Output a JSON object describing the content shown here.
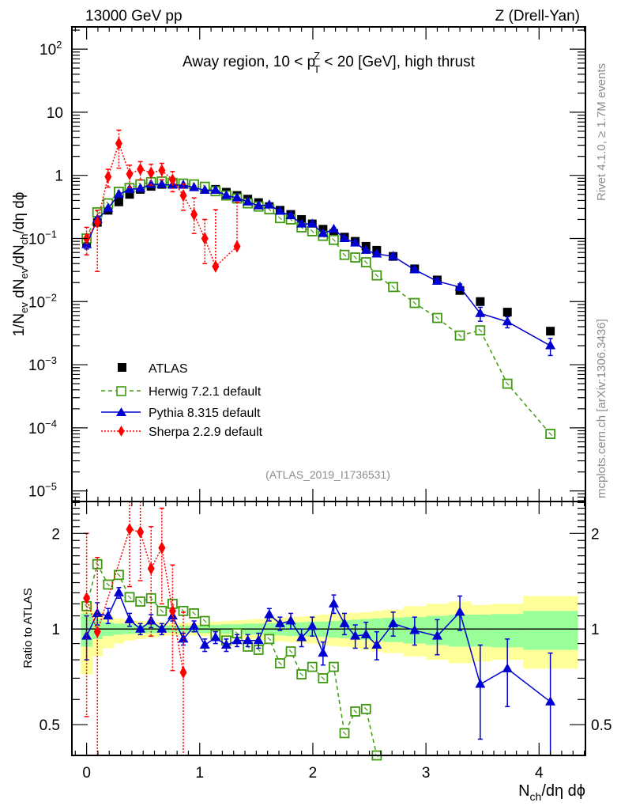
{
  "header": {
    "left": "13000 GeV pp",
    "right": "Z (Drell-Yan)"
  },
  "side_labels": {
    "rivet": "Rivet 4.1.0, ≥ 1.7M events",
    "mcplots": "mcplots.cern.ch [arXiv:1306.3436]"
  },
  "chart_data": [
    {
      "type": "scatter",
      "panel": "main",
      "title": "Away region, 10 < p_T^Z < 20 [GeV], high thrust",
      "title_parts": {
        "pre": "Away region, 10 < p",
        "sub": "T",
        "sup": "Z",
        "post": " < 20 [GeV], high thrust"
      },
      "xlabel": "N_ch/dη dφ",
      "ylabel": "1/N_ev dN_ev/dN_ch/dη dφ",
      "yscale": "log",
      "xlim": [
        -0.13,
        4.41
      ],
      "ylim": [
        6.8e-06,
        225
      ],
      "xticks": [
        "0",
        "1",
        "2",
        "3",
        "4"
      ],
      "yticks": [
        "10^2",
        "10",
        "1",
        "10^-1",
        "10^-2",
        "10^-3",
        "10^-4",
        "10^-5"
      ],
      "analysis_id": "(ATLAS_2019_I1736531)",
      "legend_position": "bottom-left",
      "series": [
        {
          "name": "ATLAS",
          "style": "square-filled",
          "color": "#000000",
          "x": [
            0.0,
            0.095,
            0.19,
            0.285,
            0.38,
            0.475,
            0.57,
            0.665,
            0.76,
            0.855,
            0.95,
            1.045,
            1.14,
            1.235,
            1.33,
            1.425,
            1.52,
            1.615,
            1.71,
            1.805,
            1.9,
            1.995,
            2.09,
            2.185,
            2.28,
            2.375,
            2.47,
            2.565,
            2.71,
            2.9,
            3.1,
            3.3,
            3.48,
            3.72,
            4.1
          ],
          "y": [
            0.085,
            0.18,
            0.28,
            0.38,
            0.5,
            0.6,
            0.67,
            0.72,
            0.73,
            0.72,
            0.68,
            0.64,
            0.6,
            0.54,
            0.48,
            0.42,
            0.37,
            0.32,
            0.28,
            0.24,
            0.2,
            0.17,
            0.14,
            0.12,
            0.105,
            0.09,
            0.075,
            0.065,
            0.052,
            0.033,
            0.022,
            0.015,
            0.01,
            0.0068,
            0.0034
          ]
        },
        {
          "name": "Herwig 7.2.1 default",
          "style": "square-open-dashed",
          "color": "#3f9a10",
          "x": [
            0.0,
            0.095,
            0.19,
            0.285,
            0.38,
            0.475,
            0.57,
            0.665,
            0.76,
            0.855,
            0.95,
            1.045,
            1.14,
            1.235,
            1.33,
            1.425,
            1.52,
            1.615,
            1.71,
            1.805,
            1.9,
            1.995,
            2.09,
            2.185,
            2.28,
            2.375,
            2.47,
            2.565,
            2.71,
            2.9,
            3.1,
            3.3,
            3.48,
            3.72,
            4.1
          ],
          "y": [
            0.1,
            0.26,
            0.36,
            0.55,
            0.63,
            0.72,
            0.78,
            0.8,
            0.76,
            0.74,
            0.72,
            0.66,
            0.56,
            0.48,
            0.43,
            0.36,
            0.32,
            0.29,
            0.21,
            0.2,
            0.15,
            0.13,
            0.11,
            0.095,
            0.055,
            0.05,
            0.042,
            0.026,
            0.017,
            0.0095,
            0.0055,
            0.0029,
            0.0035,
            0.0005,
            8e-05
          ]
        },
        {
          "name": "Pythia 8.315 default",
          "style": "triangle-solid",
          "color": "#0000d0",
          "x": [
            0.0,
            0.095,
            0.19,
            0.285,
            0.38,
            0.475,
            0.57,
            0.665,
            0.76,
            0.855,
            0.95,
            1.045,
            1.14,
            1.235,
            1.33,
            1.425,
            1.52,
            1.615,
            1.71,
            1.805,
            1.9,
            1.995,
            2.09,
            2.185,
            2.28,
            2.375,
            2.47,
            2.565,
            2.71,
            2.9,
            3.1,
            3.3,
            3.48,
            3.72,
            4.1
          ],
          "y": [
            0.08,
            0.2,
            0.3,
            0.5,
            0.6,
            0.62,
            0.72,
            0.72,
            0.7,
            0.7,
            0.64,
            0.58,
            0.58,
            0.48,
            0.44,
            0.38,
            0.33,
            0.34,
            0.27,
            0.23,
            0.17,
            0.17,
            0.12,
            0.14,
            0.1,
            0.085,
            0.065,
            0.057,
            0.052,
            0.032,
            0.021,
            0.017,
            0.0065,
            0.0048,
            0.002
          ],
          "yerr_rel": [
            0.15,
            0.08,
            0.05,
            0.04,
            0.03,
            0.03,
            0.03,
            0.03,
            0.03,
            0.03,
            0.03,
            0.03,
            0.03,
            0.03,
            0.03,
            0.03,
            0.03,
            0.04,
            0.04,
            0.04,
            0.04,
            0.05,
            0.05,
            0.05,
            0.05,
            0.06,
            0.06,
            0.07,
            0.08,
            0.08,
            0.1,
            0.12,
            0.25,
            0.2,
            0.3
          ]
        },
        {
          "name": "Sherpa 2.2.9 default",
          "style": "diamond-dotted",
          "color": "#ff0000",
          "x": [
            0.0,
            0.095,
            0.19,
            0.285,
            0.38,
            0.475,
            0.57,
            0.665,
            0.76,
            0.855,
            0.95,
            1.045,
            1.14,
            1.33
          ],
          "y": [
            0.1,
            0.18,
            0.95,
            3.2,
            1.05,
            1.25,
            1.1,
            1.2,
            0.85,
            0.48,
            0.24,
            0.1,
            0.036,
            0.075
          ],
          "yerr_lo": [
            0.045,
            0.15,
            0.3,
            1.9,
            0.4,
            0.4,
            0.4,
            0.35,
            0.3,
            0.2,
            0.12,
            0.06,
            1e-07,
            1e-07
          ],
          "yerr_hi": [
            0.05,
            0.1,
            0.3,
            2.0,
            0.4,
            0.4,
            0.4,
            0.35,
            0.3,
            0.25,
            0.2,
            0.1,
            0.25,
            0.3
          ]
        }
      ]
    },
    {
      "type": "scatter",
      "panel": "ratio",
      "ylabel": "Ratio to ATLAS",
      "xlabel": "N_ch/dη dφ",
      "yscale": "log",
      "xlim": [
        -0.13,
        4.41
      ],
      "ylim": [
        0.4,
        2.52
      ],
      "yticks": [
        "2",
        "1",
        "0.5"
      ],
      "xticks": [
        "0",
        "1",
        "2",
        "3",
        "4"
      ],
      "reference_line": 1,
      "bands": {
        "edges": [
          -0.05,
          0.05,
          0.14,
          0.24,
          0.33,
          0.43,
          0.52,
          0.62,
          0.71,
          0.81,
          0.9,
          1.0,
          1.09,
          1.19,
          1.28,
          1.38,
          1.47,
          1.57,
          1.66,
          1.76,
          1.85,
          1.95,
          2.04,
          2.14,
          2.23,
          2.33,
          2.42,
          2.52,
          2.62,
          2.8,
          3.0,
          3.2,
          3.4,
          3.58,
          3.86,
          4.34
        ],
        "stat_lo": [
          0.88,
          0.93,
          0.95,
          0.96,
          0.965,
          0.97,
          0.97,
          0.975,
          0.975,
          0.975,
          0.975,
          0.97,
          0.97,
          0.965,
          0.965,
          0.96,
          0.96,
          0.955,
          0.955,
          0.95,
          0.95,
          0.945,
          0.945,
          0.94,
          0.935,
          0.93,
          0.925,
          0.92,
          0.91,
          0.9,
          0.89,
          0.88,
          0.88,
          0.875,
          0.86
        ],
        "stat_hi": [
          1.12,
          1.07,
          1.05,
          1.04,
          1.035,
          1.03,
          1.03,
          1.025,
          1.025,
          1.025,
          1.025,
          1.03,
          1.03,
          1.035,
          1.035,
          1.04,
          1.04,
          1.045,
          1.045,
          1.05,
          1.05,
          1.055,
          1.055,
          1.06,
          1.065,
          1.07,
          1.075,
          1.08,
          1.085,
          1.09,
          1.1,
          1.11,
          1.11,
          1.115,
          1.14
        ],
        "total_lo": [
          0.72,
          0.82,
          0.87,
          0.9,
          0.92,
          0.93,
          0.94,
          0.95,
          0.955,
          0.955,
          0.955,
          0.95,
          0.945,
          0.94,
          0.935,
          0.93,
          0.925,
          0.92,
          0.915,
          0.91,
          0.905,
          0.9,
          0.89,
          0.885,
          0.88,
          0.87,
          0.86,
          0.85,
          0.84,
          0.82,
          0.8,
          0.78,
          0.79,
          0.8,
          0.75
        ],
        "total_hi": [
          1.22,
          1.14,
          1.1,
          1.08,
          1.065,
          1.06,
          1.055,
          1.05,
          1.045,
          1.045,
          1.045,
          1.05,
          1.055,
          1.06,
          1.065,
          1.07,
          1.075,
          1.08,
          1.085,
          1.09,
          1.095,
          1.1,
          1.11,
          1.115,
          1.12,
          1.125,
          1.13,
          1.14,
          1.15,
          1.18,
          1.2,
          1.22,
          1.19,
          1.2,
          1.27
        ],
        "stat_color": "#99ff99",
        "total_color": "#ffff99"
      },
      "series": [
        {
          "name": "Herwig 7.2.1 default",
          "color": "#3f9a10",
          "x": [
            0.0,
            0.095,
            0.19,
            0.285,
            0.38,
            0.475,
            0.57,
            0.665,
            0.76,
            0.855,
            0.95,
            1.045,
            1.14,
            1.235,
            1.33,
            1.425,
            1.52,
            1.615,
            1.71,
            1.805,
            1.9,
            1.995,
            2.09,
            2.185,
            2.28,
            2.375,
            2.47,
            2.565
          ],
          "y": [
            1.18,
            1.6,
            1.38,
            1.48,
            1.26,
            1.22,
            1.25,
            1.14,
            1.2,
            1.14,
            1.12,
            1.06,
            0.96,
            0.92,
            0.97,
            0.88,
            0.86,
            0.93,
            0.78,
            0.85,
            0.72,
            0.76,
            0.7,
            0.76,
            0.47,
            0.55,
            0.56,
            0.4
          ]
        },
        {
          "name": "Pythia 8.315 default",
          "color": "#0000d0",
          "x": [
            0.0,
            0.095,
            0.19,
            0.285,
            0.38,
            0.475,
            0.57,
            0.665,
            0.76,
            0.855,
            0.95,
            1.045,
            1.14,
            1.235,
            1.33,
            1.425,
            1.52,
            1.615,
            1.71,
            1.805,
            1.9,
            1.995,
            2.09,
            2.185,
            2.28,
            2.375,
            2.47,
            2.565,
            2.71,
            2.9,
            3.1,
            3.3,
            3.48,
            3.72,
            4.1
          ],
          "y": [
            0.95,
            1.12,
            1.1,
            1.3,
            1.07,
            1.0,
            1.06,
            1.0,
            1.1,
            0.93,
            1.02,
            0.89,
            0.94,
            0.89,
            0.92,
            0.92,
            0.92,
            1.11,
            1.04,
            1.06,
            0.94,
            1.02,
            0.84,
            1.2,
            1.04,
            0.95,
            0.96,
            0.89,
            1.04,
            0.99,
            0.95,
            1.13,
            0.67,
            0.75,
            0.59
          ],
          "yerr": [
            0.15,
            0.09,
            0.06,
            0.05,
            0.05,
            0.04,
            0.05,
            0.04,
            0.04,
            0.04,
            0.04,
            0.04,
            0.04,
            0.04,
            0.04,
            0.04,
            0.05,
            0.05,
            0.05,
            0.06,
            0.06,
            0.07,
            0.07,
            0.08,
            0.08,
            0.08,
            0.09,
            0.09,
            0.09,
            0.1,
            0.12,
            0.14,
            0.22,
            0.18,
            0.25
          ]
        },
        {
          "name": "Sherpa 2.2.9 default",
          "color": "#ff0000",
          "x": [
            0.0,
            0.095,
            0.38,
            0.475,
            0.57,
            0.665,
            0.76,
            0.855
          ],
          "y": [
            1.25,
            0.98,
            2.06,
            2.02,
            1.55,
            1.8,
            1.14,
            0.73
          ],
          "yerr_lo": [
            0.72,
            0.6,
            0.7,
            0.6,
            0.6,
            0.6,
            0.4,
            0.4
          ],
          "yerr_hi": [
            0.75,
            0.7,
            0.8,
            0.8,
            0.55,
            0.6,
            0.45,
            0.4
          ]
        }
      ]
    }
  ]
}
